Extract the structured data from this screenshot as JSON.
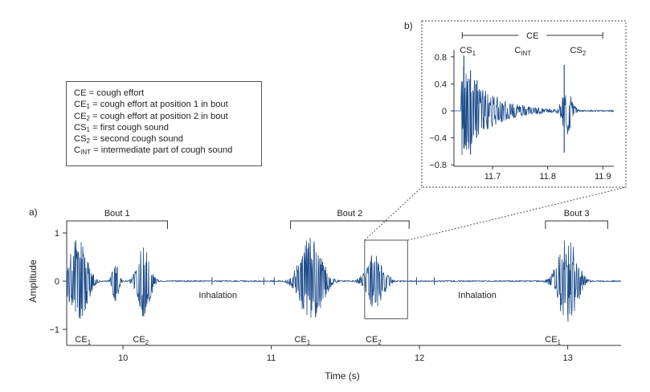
{
  "chart_data": [
    {
      "panel": "a)",
      "type": "line",
      "xlabel": "Time (s)",
      "ylabel": "Amplitude",
      "xlim": [
        9.62,
        13.36
      ],
      "ylim": [
        -1.15,
        1.15
      ],
      "xticks": [
        10,
        11,
        12,
        13
      ],
      "xtick_labels": [
        "10",
        "11",
        "12",
        "13"
      ],
      "yticks": [
        -1,
        0,
        1
      ],
      "ytick_labels": [
        "−1",
        "0",
        "1"
      ],
      "series_color": "#1f4e8c",
      "bouts": [
        {
          "label": "Bout 1",
          "start": 9.62,
          "end": 10.3
        },
        {
          "label": "Bout 2",
          "start": 11.13,
          "end": 11.93
        },
        {
          "label": "Bout 3",
          "start": 12.85,
          "end": 13.27
        }
      ],
      "bursts": [
        {
          "center": 9.7,
          "width": 0.11,
          "amplitude": 0.95
        },
        {
          "center": 9.95,
          "width": 0.04,
          "amplitude": 0.45
        },
        {
          "center": 10.14,
          "width": 0.08,
          "amplitude": 0.75
        },
        {
          "center": 11.27,
          "width": 0.14,
          "amplitude": 0.95
        },
        {
          "center": 11.7,
          "width": 0.11,
          "amplitude": 0.6
        },
        {
          "center": 13.0,
          "width": 0.12,
          "amplitude": 0.95
        }
      ],
      "effort_labels": [
        {
          "base": "CE",
          "sub": "1",
          "x": 9.73
        },
        {
          "base": "CE",
          "sub": "2",
          "x": 10.12
        },
        {
          "base": "CE",
          "sub": "1",
          "x": 11.21
        },
        {
          "base": "CE",
          "sub": "2",
          "x": 11.69
        },
        {
          "base": "CE",
          "sub": "1",
          "x": 12.9
        }
      ],
      "annotations": [
        {
          "text": "Inhalation",
          "x": 10.64
        },
        {
          "text": "Inhalation",
          "x": 12.39
        }
      ],
      "zoom_window": {
        "x": [
          11.63,
          11.92
        ],
        "y": [
          -0.78,
          0.85
        ]
      }
    },
    {
      "panel": "b)",
      "type": "line",
      "xlim": [
        11.63,
        11.92
      ],
      "ylim": [
        -0.85,
        0.85
      ],
      "xticks": [
        11.7,
        11.8,
        11.9
      ],
      "xtick_labels": [
        "11.7",
        "11.8",
        "11.9"
      ],
      "yticks": [
        0.8,
        0.4,
        0,
        -0.4,
        -0.8
      ],
      "ytick_labels": [
        "0.8",
        "0.4",
        "0",
        "−0.4",
        "−0.8"
      ],
      "series_color": "#1f4e8c",
      "ce_bracket": {
        "label": "CE",
        "start": 11.645,
        "end": 11.9
      },
      "segment_labels": [
        {
          "base": "CS",
          "sub": "1",
          "x": 11.655
        },
        {
          "base": "C",
          "sub": "INT",
          "x": 11.755
        },
        {
          "base": "CS",
          "sub": "2",
          "x": 11.855
        }
      ]
    }
  ],
  "legend": [
    {
      "base": "CE",
      "sub": "",
      "text": " = cough effort"
    },
    {
      "base": "CE",
      "sub": "1",
      "text": " = cough effort at position 1 in bout"
    },
    {
      "base": "CE",
      "sub": "2",
      "text": " = cough effort at position 2 in bout"
    },
    {
      "base": "CS",
      "sub": "1",
      "text": " = first cough sound"
    },
    {
      "base": "CS",
      "sub": "2",
      "text": " = second cough sound"
    },
    {
      "base": "C",
      "sub": "INT",
      "text": " = intermediate part of cough sound"
    }
  ]
}
